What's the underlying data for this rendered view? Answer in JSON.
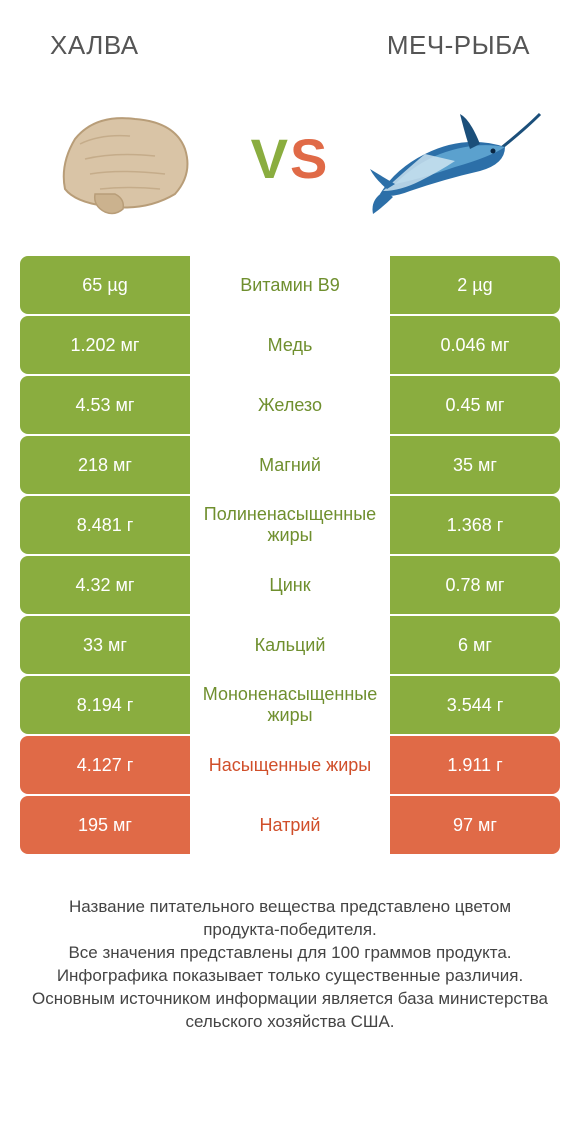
{
  "colors": {
    "green": "#8aad3f",
    "orange": "#e06a47",
    "green_text": "#6f8f2e",
    "orange_text": "#d04f2a",
    "halva_fill": "#d9c4a6",
    "halva_shadow": "#b89d78",
    "fish_body": "#2c6fa8",
    "fish_highlight": "#6fb7de",
    "fish_belly": "#d5e8f2"
  },
  "header": {
    "left": "Халва",
    "right": "Меч-рыба"
  },
  "vs": {
    "v": "V",
    "s": "S"
  },
  "rows": [
    {
      "left": "65 µg",
      "mid": "Витамин B9",
      "right": "2 µg",
      "winner": "left"
    },
    {
      "left": "1.202 мг",
      "mid": "Медь",
      "right": "0.046 мг",
      "winner": "left"
    },
    {
      "left": "4.53 мг",
      "mid": "Железо",
      "right": "0.45 мг",
      "winner": "left"
    },
    {
      "left": "218 мг",
      "mid": "Магний",
      "right": "35 мг",
      "winner": "left"
    },
    {
      "left": "8.481 г",
      "mid": "Полиненасыщенные жиры",
      "right": "1.368 г",
      "winner": "left"
    },
    {
      "left": "4.32 мг",
      "mid": "Цинк",
      "right": "0.78 мг",
      "winner": "left"
    },
    {
      "left": "33 мг",
      "mid": "Кальций",
      "right": "6 мг",
      "winner": "left"
    },
    {
      "left": "8.194 г",
      "mid": "Мононенасыщенные жиры",
      "right": "3.544 г",
      "winner": "left"
    },
    {
      "left": "4.127 г",
      "mid": "Насыщенные жиры",
      "right": "1.911 г",
      "winner": "right"
    },
    {
      "left": "195 мг",
      "mid": "Натрий",
      "right": "97 мг",
      "winner": "right"
    }
  ],
  "footer": {
    "l1": "Название питательного вещества представлено цветом продукта-победителя.",
    "l2": "Все значения представлены для 100 граммов продукта.",
    "l3": "Инфографика показывает только существенные различия.",
    "l4": "Основным источником информации является база министерства сельского хозяйства США."
  }
}
